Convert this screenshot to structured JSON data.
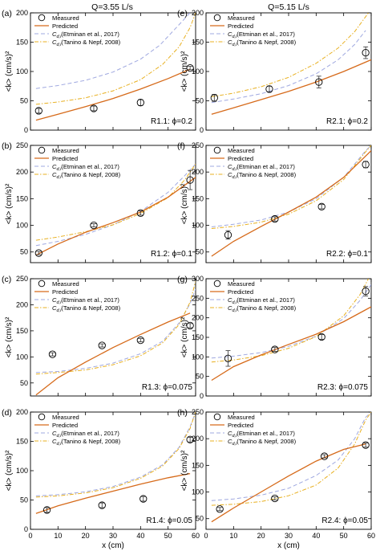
{
  "column_titles": [
    "Q=3.55 L/s",
    "Q=5.15 L/s"
  ],
  "axis_label_x": "x (cm)",
  "axis_label_y": "<k> (cm/s)²",
  "legend": {
    "measured": "Measured",
    "predicted": "Predicted",
    "etminan": "C_d,i(Etminan et al., 2017)",
    "tanino": "C_d,i(Tanino & Nepf, 2008)"
  },
  "colors": {
    "predicted": "#d66a1a",
    "etminan": "#9fa8e0",
    "tanino": "#e8b020",
    "measured": "#000000"
  },
  "chart_data": [
    {
      "type": "scatter",
      "panel": "(a)",
      "label": "R1.1: ϕ=0.2",
      "xlim": [
        0,
        60
      ],
      "ylim": [
        0,
        200
      ],
      "xticks": [
        0,
        10,
        20,
        30,
        40,
        50,
        60
      ],
      "yticks": [
        0,
        50,
        100,
        150,
        200
      ],
      "measured": [
        {
          "x": 3,
          "y": 33,
          "err": 4
        },
        {
          "x": 23,
          "y": 37,
          "err": 4
        },
        {
          "x": 40,
          "y": 47,
          "err": 5
        },
        {
          "x": 58,
          "y": 106,
          "err": 3
        }
      ],
      "predicted": [
        [
          2,
          17
        ],
        [
          10,
          27
        ],
        [
          20,
          40
        ],
        [
          30,
          54
        ],
        [
          40,
          70
        ],
        [
          50,
          88
        ],
        [
          58,
          104
        ]
      ],
      "etminan": [
        [
          2,
          71
        ],
        [
          10,
          76
        ],
        [
          20,
          85
        ],
        [
          30,
          99
        ],
        [
          40,
          121
        ],
        [
          47,
          145
        ],
        [
          53,
          175
        ],
        [
          58,
          200
        ]
      ],
      "tanino": [
        [
          2,
          44
        ],
        [
          10,
          48
        ],
        [
          20,
          55
        ],
        [
          30,
          67
        ],
        [
          40,
          86
        ],
        [
          48,
          112
        ],
        [
          54,
          142
        ],
        [
          58,
          175
        ],
        [
          60,
          200
        ]
      ],
      "show_xticklabels": false
    },
    {
      "type": "scatter",
      "panel": "(e)",
      "label": "R2.1: ϕ=0.2",
      "xlim": [
        0,
        60
      ],
      "ylim": [
        0,
        200
      ],
      "xticks": [
        0,
        10,
        20,
        30,
        40,
        50,
        60
      ],
      "yticks": [
        0,
        50,
        100,
        150,
        200
      ],
      "measured": [
        {
          "x": 3,
          "y": 55,
          "err": 6
        },
        {
          "x": 23,
          "y": 70,
          "err": 5
        },
        {
          "x": 41,
          "y": 82,
          "err": 10
        },
        {
          "x": 58,
          "y": 132,
          "err": 10
        }
      ],
      "predicted": [
        [
          2,
          27
        ],
        [
          10,
          38
        ],
        [
          20,
          52
        ],
        [
          30,
          66
        ],
        [
          40,
          82
        ],
        [
          50,
          100
        ],
        [
          60,
          120
        ]
      ],
      "etminan": [
        [
          2,
          47
        ],
        [
          10,
          53
        ],
        [
          20,
          62
        ],
        [
          30,
          76
        ],
        [
          40,
          96
        ],
        [
          48,
          120
        ],
        [
          54,
          146
        ],
        [
          58,
          170
        ]
      ],
      "tanino": [
        [
          2,
          57
        ],
        [
          10,
          63
        ],
        [
          20,
          74
        ],
        [
          30,
          90
        ],
        [
          40,
          114
        ],
        [
          48,
          140
        ],
        [
          54,
          168
        ],
        [
          59,
          200
        ]
      ],
      "show_xticklabels": false
    },
    {
      "type": "scatter",
      "panel": "(b)",
      "label": "R1.2: ϕ=0.1",
      "xlim": [
        0,
        60
      ],
      "ylim": [
        30,
        250
      ],
      "xticks": [
        0,
        10,
        20,
        30,
        40,
        50,
        60
      ],
      "yticks": [
        50,
        100,
        150,
        200,
        250
      ],
      "measured": [
        {
          "x": 3,
          "y": 48,
          "err": 3
        },
        {
          "x": 23,
          "y": 100,
          "err": 3
        },
        {
          "x": 40,
          "y": 123,
          "err": 4
        },
        {
          "x": 58,
          "y": 185,
          "err": 18
        }
      ],
      "predicted": [
        [
          2,
          44
        ],
        [
          10,
          65
        ],
        [
          20,
          87
        ],
        [
          30,
          105
        ],
        [
          40,
          125
        ],
        [
          50,
          153
        ],
        [
          60,
          190
        ]
      ],
      "etminan": [
        [
          2,
          62
        ],
        [
          10,
          70
        ],
        [
          20,
          83
        ],
        [
          30,
          101
        ],
        [
          40,
          126
        ],
        [
          50,
          162
        ],
        [
          56,
          193
        ],
        [
          60,
          215
        ]
      ],
      "tanino": [
        [
          2,
          72
        ],
        [
          10,
          78
        ],
        [
          20,
          88
        ],
        [
          30,
          101
        ],
        [
          40,
          122
        ],
        [
          50,
          152
        ],
        [
          56,
          185
        ],
        [
          60,
          215
        ]
      ],
      "show_xticklabels": false
    },
    {
      "type": "scatter",
      "panel": "(f)",
      "label": "R2.2: ϕ=0.1",
      "xlim": [
        0,
        60
      ],
      "ylim": [
        30,
        250
      ],
      "xticks": [
        0,
        10,
        20,
        30,
        40,
        50,
        60
      ],
      "yticks": [
        50,
        100,
        150,
        200,
        250
      ],
      "measured": [
        {
          "x": 8,
          "y": 82,
          "err": 8
        },
        {
          "x": 25,
          "y": 112,
          "err": 4
        },
        {
          "x": 42,
          "y": 135,
          "err": 4
        },
        {
          "x": 58,
          "y": 214,
          "err": 6
        }
      ],
      "predicted": [
        [
          2,
          42
        ],
        [
          10,
          70
        ],
        [
          20,
          98
        ],
        [
          30,
          125
        ],
        [
          40,
          153
        ],
        [
          50,
          190
        ],
        [
          60,
          240
        ]
      ],
      "etminan": [
        [
          2,
          97
        ],
        [
          10,
          102
        ],
        [
          20,
          110
        ],
        [
          30,
          125
        ],
        [
          40,
          150
        ],
        [
          50,
          190
        ],
        [
          58,
          240
        ],
        [
          60,
          250
        ]
      ],
      "tanino": [
        [
          2,
          94
        ],
        [
          10,
          98
        ],
        [
          20,
          106
        ],
        [
          30,
          121
        ],
        [
          40,
          146
        ],
        [
          50,
          186
        ],
        [
          58,
          238
        ],
        [
          60,
          250
        ]
      ],
      "show_xticklabels": false
    },
    {
      "type": "scatter",
      "panel": "(c)",
      "label": "R1.3: ϕ=0.075",
      "xlim": [
        0,
        60
      ],
      "ylim": [
        25,
        250
      ],
      "xticks": [
        0,
        10,
        20,
        30,
        40,
        50,
        60
      ],
      "yticks": [
        50,
        100,
        150,
        200,
        250
      ],
      "measured": [
        {
          "x": 8,
          "y": 105,
          "err": 3
        },
        {
          "x": 26,
          "y": 122,
          "err": 3
        },
        {
          "x": 40,
          "y": 132,
          "err": 3
        },
        {
          "x": 58,
          "y": 160,
          "err": 4
        }
      ],
      "predicted": [
        [
          2,
          27
        ],
        [
          10,
          60
        ],
        [
          20,
          90
        ],
        [
          30,
          118
        ],
        [
          40,
          143
        ],
        [
          50,
          167
        ],
        [
          58,
          184
        ]
      ],
      "etminan": [
        [
          2,
          70
        ],
        [
          10,
          72
        ],
        [
          20,
          78
        ],
        [
          30,
          88
        ],
        [
          40,
          106
        ],
        [
          48,
          130
        ],
        [
          54,
          165
        ],
        [
          58,
          202
        ],
        [
          60,
          230
        ]
      ],
      "tanino": [
        [
          2,
          67
        ],
        [
          10,
          70
        ],
        [
          20,
          75
        ],
        [
          30,
          85
        ],
        [
          40,
          102
        ],
        [
          48,
          127
        ],
        [
          54,
          162
        ],
        [
          58,
          205
        ],
        [
          60,
          245
        ]
      ],
      "show_xticklabels": false
    },
    {
      "type": "scatter",
      "panel": "(g)",
      "label": "R2.3: ϕ=0.075",
      "xlim": [
        0,
        60
      ],
      "ylim": [
        0,
        300
      ],
      "xticks": [
        0,
        10,
        20,
        30,
        40,
        50,
        60
      ],
      "yticks": [
        0,
        50,
        100,
        150,
        200,
        250,
        300
      ],
      "measured": [
        {
          "x": 8,
          "y": 96,
          "err": 20
        },
        {
          "x": 25,
          "y": 119,
          "err": 5
        },
        {
          "x": 42,
          "y": 151,
          "err": 6
        },
        {
          "x": 58,
          "y": 268,
          "err": 12
        }
      ],
      "predicted": [
        [
          2,
          40
        ],
        [
          10,
          75
        ],
        [
          20,
          105
        ],
        [
          30,
          132
        ],
        [
          40,
          158
        ],
        [
          50,
          190
        ],
        [
          60,
          228
        ]
      ],
      "etminan": [
        [
          2,
          97
        ],
        [
          10,
          102
        ],
        [
          20,
          111
        ],
        [
          30,
          127
        ],
        [
          40,
          153
        ],
        [
          50,
          198
        ],
        [
          56,
          245
        ],
        [
          60,
          285
        ]
      ],
      "tanino": [
        [
          2,
          87
        ],
        [
          10,
          92
        ],
        [
          20,
          103
        ],
        [
          30,
          122
        ],
        [
          40,
          152
        ],
        [
          50,
          205
        ],
        [
          56,
          260
        ],
        [
          59,
          300
        ]
      ],
      "show_xticklabels": false
    },
    {
      "type": "scatter",
      "panel": "(d)",
      "label": "R1.4: ϕ=0.05",
      "xlim": [
        0,
        60
      ],
      "ylim": [
        0,
        200
      ],
      "xticks": [
        0,
        10,
        20,
        30,
        40,
        50,
        60
      ],
      "yticks": [
        0,
        50,
        100,
        150,
        200
      ],
      "measured": [
        {
          "x": 6,
          "y": 33,
          "err": 4
        },
        {
          "x": 26,
          "y": 41,
          "err": 4
        },
        {
          "x": 41,
          "y": 52,
          "err": 4
        },
        {
          "x": 58,
          "y": 153,
          "err": 4
        }
      ],
      "predicted": [
        [
          2,
          27
        ],
        [
          10,
          40
        ],
        [
          20,
          53
        ],
        [
          30,
          65
        ],
        [
          40,
          77
        ],
        [
          50,
          88
        ],
        [
          58,
          95
        ]
      ],
      "etminan": [
        [
          2,
          57
        ],
        [
          10,
          59
        ],
        [
          20,
          64
        ],
        [
          30,
          73
        ],
        [
          40,
          89
        ],
        [
          48,
          110
        ],
        [
          54,
          140
        ],
        [
          58,
          175
        ],
        [
          60,
          200
        ]
      ],
      "tanino": [
        [
          2,
          55
        ],
        [
          10,
          57
        ],
        [
          20,
          62
        ],
        [
          30,
          71
        ],
        [
          40,
          87
        ],
        [
          48,
          108
        ],
        [
          54,
          138
        ],
        [
          58,
          172
        ],
        [
          60,
          200
        ]
      ],
      "show_xticklabels": true
    },
    {
      "type": "scatter",
      "panel": "(h)",
      "label": "R2.4: ϕ=0.05",
      "xlim": [
        0,
        60
      ],
      "ylim": [
        30,
        250
      ],
      "xticks": [
        0,
        10,
        20,
        30,
        40,
        50,
        60
      ],
      "yticks": [
        50,
        100,
        150,
        200,
        250
      ],
      "measured": [
        {
          "x": 5,
          "y": 68,
          "err": 3
        },
        {
          "x": 25,
          "y": 88,
          "err": 3
        },
        {
          "x": 43,
          "y": 167,
          "err": 3
        },
        {
          "x": 58,
          "y": 188,
          "err": 4
        }
      ],
      "predicted": [
        [
          2,
          44
        ],
        [
          10,
          70
        ],
        [
          20,
          100
        ],
        [
          30,
          130
        ],
        [
          40,
          158
        ],
        [
          50,
          180
        ],
        [
          58,
          190
        ]
      ],
      "etminan": [
        [
          2,
          84
        ],
        [
          10,
          87
        ],
        [
          20,
          94
        ],
        [
          30,
          107
        ],
        [
          40,
          131
        ],
        [
          48,
          160
        ],
        [
          54,
          200
        ],
        [
          58,
          240
        ],
        [
          60,
          250
        ]
      ],
      "tanino": [
        [
          2,
          75
        ],
        [
          10,
          77
        ],
        [
          20,
          82
        ],
        [
          30,
          93
        ],
        [
          40,
          113
        ],
        [
          48,
          145
        ],
        [
          54,
          190
        ],
        [
          58,
          235
        ],
        [
          60,
          250
        ]
      ],
      "show_xticklabels": true
    }
  ]
}
